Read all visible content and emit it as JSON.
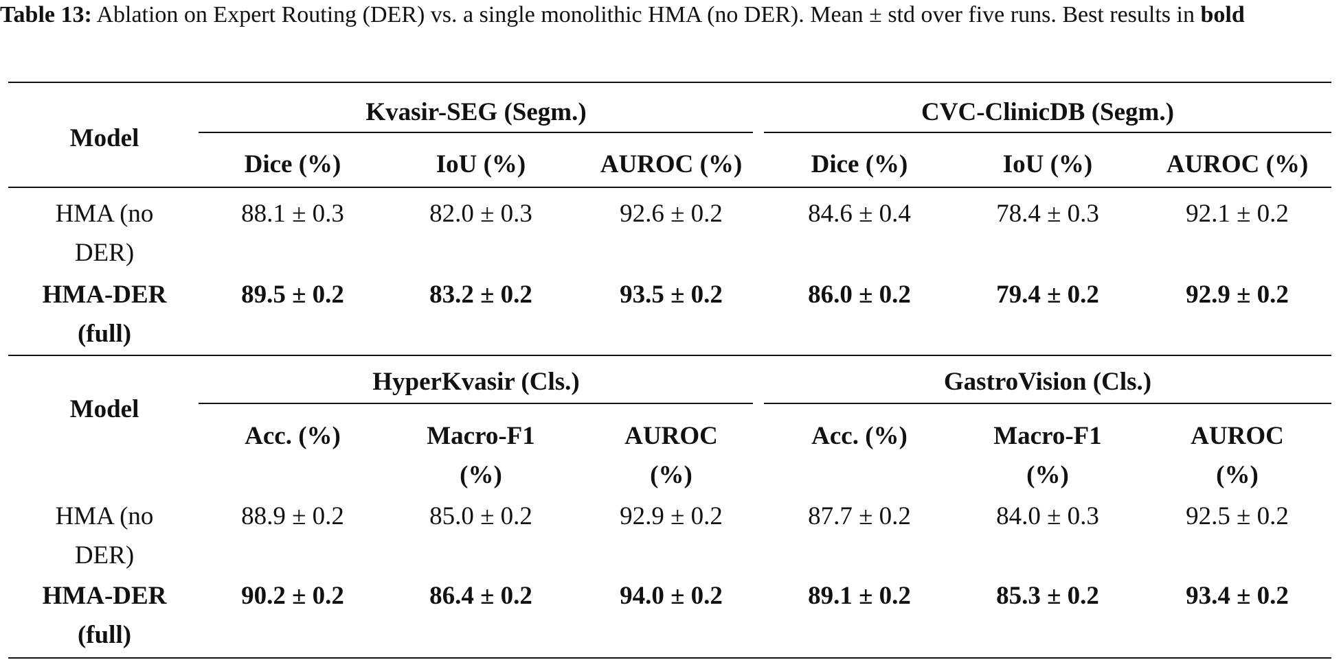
{
  "caption": {
    "label": "Table 13:",
    "text": " Ablation on Expert Routing (DER) vs. a single monolithic HMA (no DER). Mean ± std over five runs. Best results in ",
    "bold_word": "bold"
  },
  "blocks": [
    {
      "model_header": "Model",
      "groups": [
        "Kvasir-SEG (Segm.)",
        "CVC-ClinicDB (Segm.)"
      ],
      "columns": [
        "Dice (%)",
        "IoU (%)",
        "AUROC (%)",
        "Dice (%)",
        "IoU (%)",
        "AUROC (%)"
      ],
      "rows": [
        {
          "model": "HMA (no DER)",
          "bold": false,
          "values": [
            "88.1 ± 0.3",
            "82.0 ± 0.3",
            "92.6 ± 0.2",
            "84.6 ± 0.4",
            "78.4 ± 0.3",
            "92.1 ± 0.2"
          ]
        },
        {
          "model": "HMA-DER (full)",
          "bold": true,
          "values": [
            "89.5 ± 0.2",
            "83.2 ± 0.2",
            "93.5 ± 0.2",
            "86.0 ± 0.2",
            "79.4 ± 0.2",
            "92.9 ± 0.2"
          ]
        }
      ]
    },
    {
      "model_header": "Model",
      "groups": [
        "HyperKvasir (Cls.)",
        "GastroVision (Cls.)"
      ],
      "columns": [
        "Acc. (%)",
        "Macro-F1 (%)",
        "AUROC (%)",
        "Acc. (%)",
        "Macro-F1 (%)",
        "AUROC (%)"
      ],
      "rows": [
        {
          "model": "HMA (no DER)",
          "bold": false,
          "values": [
            "88.9 ± 0.2",
            "85.0 ± 0.2",
            "92.9 ± 0.2",
            "87.7 ± 0.2",
            "84.0 ± 0.3",
            "92.5 ± 0.2"
          ]
        },
        {
          "model": "HMA-DER (full)",
          "bold": true,
          "values": [
            "90.2 ± 0.2",
            "86.4 ± 0.2",
            "94.0 ± 0.2",
            "89.1 ± 0.2",
            "85.3 ± 0.2",
            "93.4 ± 0.2"
          ]
        }
      ]
    }
  ]
}
